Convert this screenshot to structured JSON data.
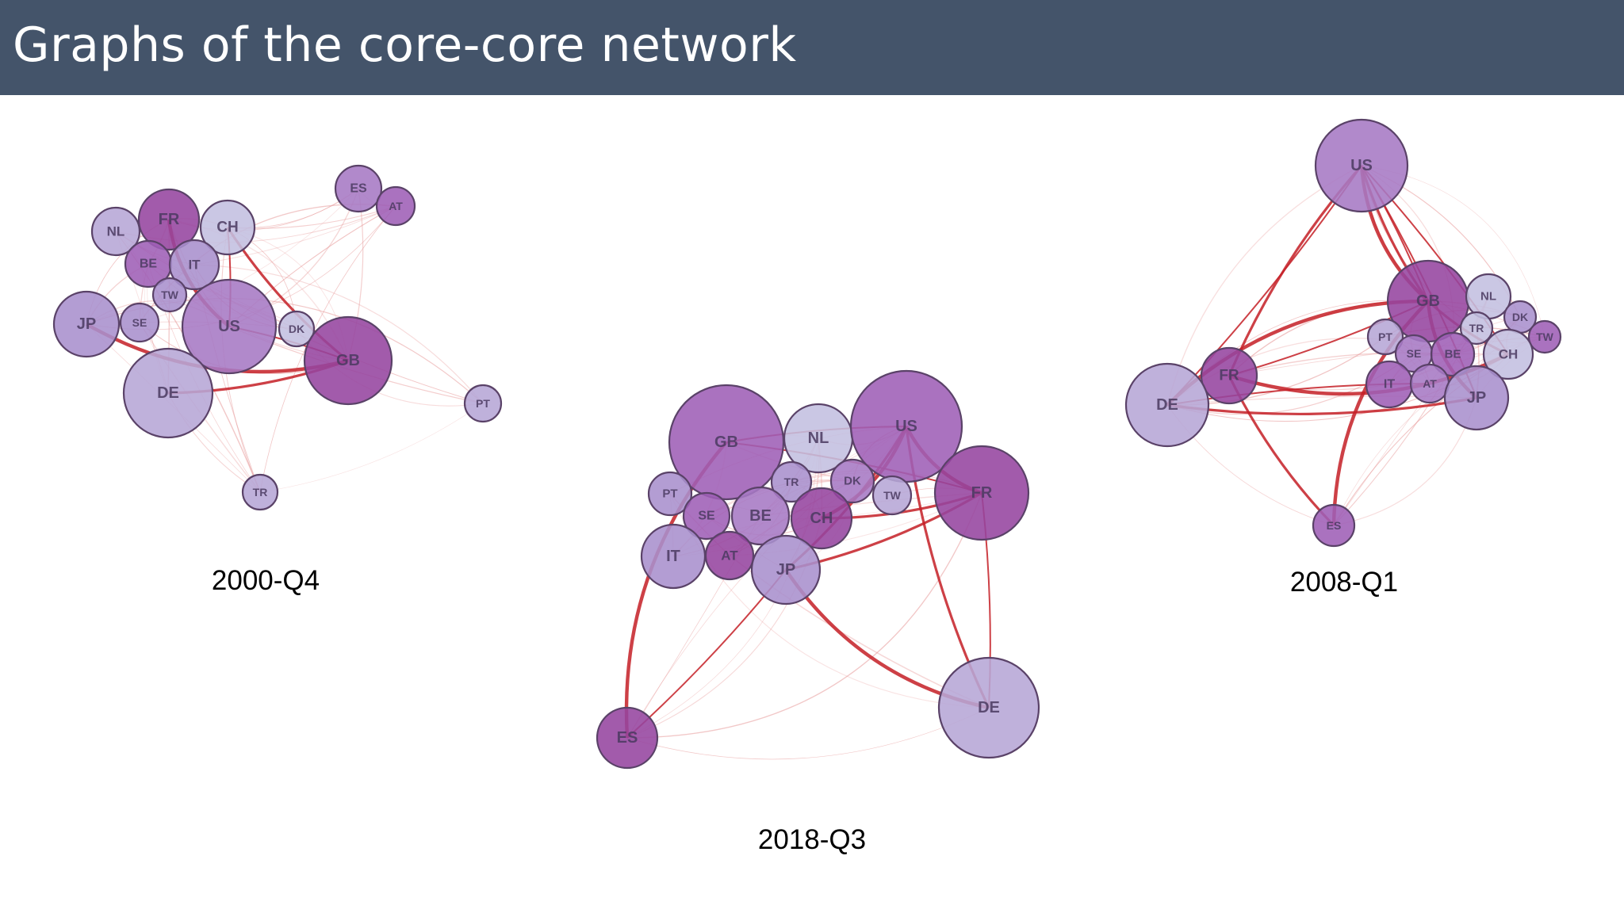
{
  "title": "Graphs of the core-core network",
  "colors": {
    "title_bar": "#44546a",
    "node_outline": "#5a4268",
    "node_palette": [
      "#c3bfe0",
      "#b6a6d6",
      "#a98fcd",
      "#a679c4",
      "#9e5fb6",
      "#95449f"
    ],
    "edge_strong": "#c41e26",
    "edge_weak": "#e79999"
  },
  "graphs": [
    {
      "id": "g2000",
      "caption": "2000-Q4",
      "nodes": [
        {
          "id": "ES",
          "shade": 3
        },
        {
          "id": "AT",
          "shade": 4
        },
        {
          "id": "FR",
          "shade": 5
        },
        {
          "id": "CH",
          "shade": 0
        },
        {
          "id": "NL",
          "shade": 1
        },
        {
          "id": "BE",
          "shade": 4
        },
        {
          "id": "IT",
          "shade": 2
        },
        {
          "id": "TW",
          "shade": 2
        },
        {
          "id": "JP",
          "shade": 2
        },
        {
          "id": "SE",
          "shade": 2
        },
        {
          "id": "US",
          "shade": 3
        },
        {
          "id": "DK",
          "shade": 0
        },
        {
          "id": "GB",
          "shade": 5
        },
        {
          "id": "DE",
          "shade": 1
        },
        {
          "id": "PT",
          "shade": 1
        },
        {
          "id": "TR",
          "shade": 1
        }
      ],
      "strong_edges": [
        [
          "US",
          "GB"
        ],
        [
          "CH",
          "GB"
        ],
        [
          "JP",
          "GB"
        ],
        [
          "CH",
          "US"
        ],
        [
          "DE",
          "GB"
        ],
        [
          "FR",
          "US"
        ]
      ]
    },
    {
      "id": "g2018",
      "caption": "2018-Q3",
      "nodes": [
        {
          "id": "GB",
          "shade": 4
        },
        {
          "id": "NL",
          "shade": 0
        },
        {
          "id": "US",
          "shade": 4
        },
        {
          "id": "TR",
          "shade": 2
        },
        {
          "id": "DK",
          "shade": 3
        },
        {
          "id": "PT",
          "shade": 2
        },
        {
          "id": "TW",
          "shade": 1
        },
        {
          "id": "FR",
          "shade": 5
        },
        {
          "id": "SE",
          "shade": 4
        },
        {
          "id": "BE",
          "shade": 3
        },
        {
          "id": "CH",
          "shade": 5
        },
        {
          "id": "IT",
          "shade": 2
        },
        {
          "id": "AT",
          "shade": 5
        },
        {
          "id": "JP",
          "shade": 2
        },
        {
          "id": "ES",
          "shade": 5
        },
        {
          "id": "DE",
          "shade": 1
        }
      ],
      "strong_edges": [
        [
          "GB",
          "US"
        ],
        [
          "JP",
          "US"
        ],
        [
          "CH",
          "US"
        ],
        [
          "FR",
          "DE"
        ],
        [
          "US",
          "DE"
        ],
        [
          "GB",
          "ES"
        ],
        [
          "JP",
          "ES"
        ],
        [
          "JP",
          "FR"
        ],
        [
          "US",
          "FR"
        ],
        [
          "GB",
          "FR"
        ],
        [
          "CH",
          "FR"
        ],
        [
          "JP",
          "DE"
        ]
      ]
    },
    {
      "id": "g2008",
      "caption": "2008-Q1",
      "nodes": [
        {
          "id": "US",
          "shade": 3
        },
        {
          "id": "GB",
          "shade": 5
        },
        {
          "id": "NL",
          "shade": 0
        },
        {
          "id": "DK",
          "shade": 2
        },
        {
          "id": "TW",
          "shade": 4
        },
        {
          "id": "PT",
          "shade": 1
        },
        {
          "id": "TR",
          "shade": 0
        },
        {
          "id": "SE",
          "shade": 3
        },
        {
          "id": "BE",
          "shade": 4
        },
        {
          "id": "CH",
          "shade": 0
        },
        {
          "id": "FR",
          "shade": 5
        },
        {
          "id": "DE",
          "shade": 1
        },
        {
          "id": "IT",
          "shade": 4
        },
        {
          "id": "AT",
          "shade": 3
        },
        {
          "id": "JP",
          "shade": 2
        },
        {
          "id": "ES",
          "shade": 4
        }
      ],
      "strong_edges": [
        [
          "US",
          "GB"
        ],
        [
          "US",
          "GB"
        ],
        [
          "US",
          "GB"
        ],
        [
          "US",
          "DE"
        ],
        [
          "US",
          "FR"
        ],
        [
          "GB",
          "DE"
        ],
        [
          "GB",
          "FR"
        ],
        [
          "GB",
          "CH"
        ],
        [
          "GB",
          "JP"
        ],
        [
          "US",
          "JP"
        ],
        [
          "DE",
          "JP"
        ],
        [
          "FR",
          "CH"
        ],
        [
          "US",
          "CH"
        ],
        [
          "FR",
          "ES"
        ],
        [
          "GB",
          "ES"
        ],
        [
          "DE",
          "AT"
        ]
      ]
    }
  ]
}
